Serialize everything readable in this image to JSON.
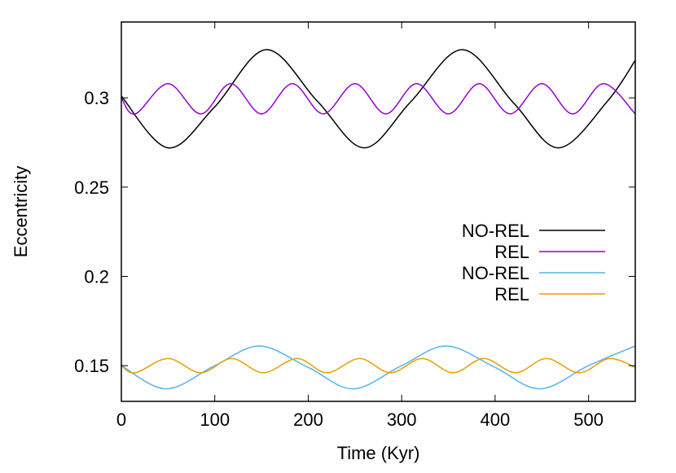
{
  "chart_data": {
    "type": "line",
    "title": "",
    "xlabel": "Time (Kyr)",
    "ylabel": "Eccentricity",
    "xlim": [
      0,
      550
    ],
    "ylim": [
      0.13,
      0.3425
    ],
    "x_ticks": [
      0,
      100,
      200,
      300,
      400,
      500
    ],
    "y_ticks": [
      0.15,
      0.2,
      0.25,
      0.3
    ],
    "y_tick_labels": [
      "0.15",
      "0.2",
      "0.25",
      "0.3"
    ],
    "grid": false,
    "legend_position": "center-right",
    "series": [
      {
        "name": "NO-REL",
        "color": "#000000",
        "x": [
          0,
          50,
          100,
          155,
          210,
          260,
          310,
          365,
          420,
          468,
          520,
          550
        ],
        "y": [
          0.301,
          0.272,
          0.295,
          0.327,
          0.298,
          0.272,
          0.298,
          0.327,
          0.297,
          0.272,
          0.298,
          0.321
        ]
      },
      {
        "name": "REL",
        "color": "#9400d3",
        "x": [
          0,
          15,
          50,
          85,
          117,
          150,
          183,
          216,
          250,
          283,
          316,
          350,
          383,
          416,
          450,
          483,
          516,
          550
        ],
        "y": [
          0.3,
          0.291,
          0.308,
          0.291,
          0.308,
          0.291,
          0.308,
          0.291,
          0.308,
          0.291,
          0.308,
          0.291,
          0.308,
          0.291,
          0.308,
          0.291,
          0.308,
          0.291
        ]
      },
      {
        "name": "NO-REL",
        "color": "#56b4e9",
        "x": [
          0,
          48,
          100,
          148,
          200,
          248,
          300,
          348,
          400,
          448,
          500,
          550
        ],
        "y": [
          0.15,
          0.137,
          0.15,
          0.161,
          0.149,
          0.137,
          0.15,
          0.161,
          0.149,
          0.137,
          0.15,
          0.161
        ]
      },
      {
        "name": "REL",
        "color": "#e69f00",
        "x": [
          0,
          15,
          50,
          85,
          118,
          152,
          188,
          220,
          255,
          288,
          322,
          355,
          388,
          422,
          455,
          490,
          522,
          550
        ],
        "y": [
          0.15,
          0.146,
          0.154,
          0.146,
          0.154,
          0.146,
          0.154,
          0.146,
          0.154,
          0.146,
          0.154,
          0.146,
          0.154,
          0.146,
          0.154,
          0.146,
          0.154,
          0.149
        ]
      }
    ]
  }
}
